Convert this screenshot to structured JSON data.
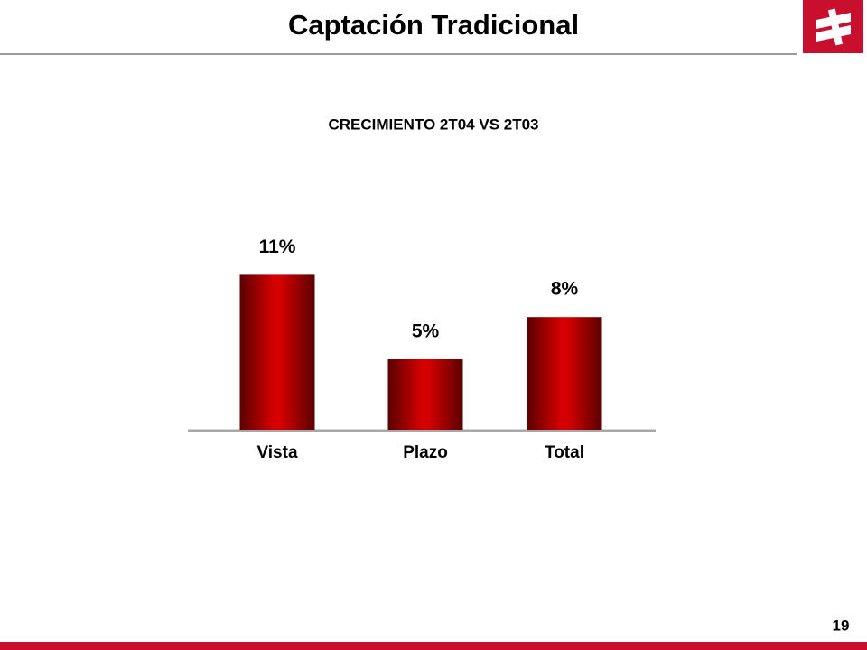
{
  "header": {
    "title": "Captación Tradicional"
  },
  "footer": {
    "page": "19"
  },
  "chart_data": {
    "type": "bar",
    "title": "CRECIMIENTO 2T04 VS 2T03",
    "categories": [
      "Vista",
      "Plazo",
      "Total"
    ],
    "values": [
      11,
      5,
      8
    ],
    "value_labels": [
      "11%",
      "5%",
      "8%"
    ],
    "color": "#d40000"
  }
}
